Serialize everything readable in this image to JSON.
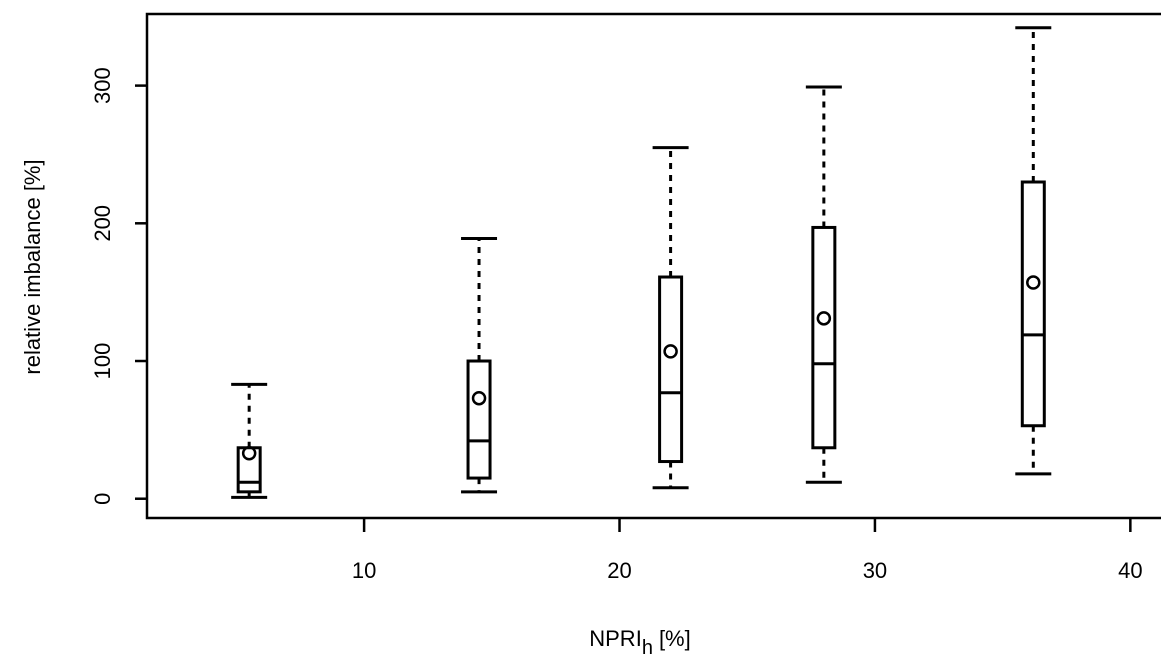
{
  "chart_data": {
    "type": "boxplot",
    "xlabel_main": "NPRI",
    "xlabel_sub": "h",
    "xlabel_unit": "[%]",
    "ylabel": "relative imbalance [%]",
    "xlim": [
      1.5,
      41.2
    ],
    "ylim": [
      -14,
      352
    ],
    "x_ticks": [
      10,
      20,
      30,
      40
    ],
    "y_ticks": [
      0,
      100,
      200,
      300
    ],
    "x_tick_labels": [
      "10",
      "20",
      "30",
      "40"
    ],
    "y_tick_labels": [
      "0",
      "100",
      "200",
      "300"
    ],
    "grid": false,
    "boxes": [
      {
        "x": 5.5,
        "min": 1,
        "q1": 5,
        "median": 12,
        "q3": 37,
        "max": 83,
        "mean": 33
      },
      {
        "x": 14.5,
        "min": 5,
        "q1": 15,
        "median": 42,
        "q3": 100,
        "max": 189,
        "mean": 73
      },
      {
        "x": 22.0,
        "min": 8,
        "q1": 27,
        "median": 77,
        "q3": 161,
        "max": 255,
        "mean": 107
      },
      {
        "x": 28.0,
        "min": 12,
        "q1": 37,
        "median": 98,
        "q3": 197,
        "max": 299,
        "mean": 131
      },
      {
        "x": 36.2,
        "min": 18,
        "q1": 53,
        "median": 119,
        "q3": 230,
        "max": 342,
        "mean": 157
      }
    ]
  }
}
